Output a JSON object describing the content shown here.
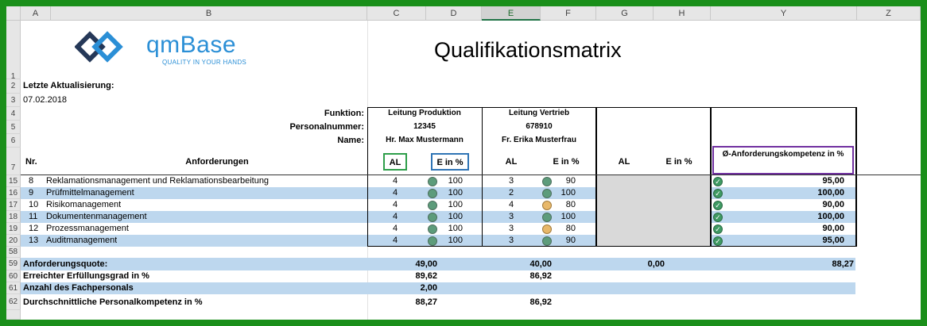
{
  "columns": [
    "A",
    "B",
    "C",
    "D",
    "E",
    "F",
    "G",
    "H",
    "Y",
    "Z"
  ],
  "selected_column": "E",
  "rows": [
    "1",
    "2",
    "3",
    "4",
    "5",
    "6",
    "7",
    "15",
    "16",
    "17",
    "18",
    "19",
    "20",
    "58",
    "59",
    "60",
    "61",
    "62"
  ],
  "logo": {
    "name": "qmBase",
    "tagline": "QUALITY IN YOUR HANDS"
  },
  "title": "Qualifikationsmatrix",
  "last_update_label": "Letzte Aktualisierung:",
  "last_update_date": "07.02.2018",
  "labels": {
    "funktion": "Funktion:",
    "personalnummer": "Personalnummer:",
    "name": "Name:",
    "nr": "Nr.",
    "anforderungen": "Anforderungen",
    "al": "AL",
    "e_in_pct": "E in %",
    "avg_competence": "Ø-Anforderungskompetenz in %"
  },
  "persons": [
    {
      "funktion": "Leitung Produktion",
      "personalnummer": "12345",
      "name": "Hr. Max Mustermann"
    },
    {
      "funktion": "Leitung Vertrieb",
      "personalnummer": "678910",
      "name": "Fr. Erika Musterfrau"
    }
  ],
  "requirements": [
    {
      "nr": "8",
      "name": "Reklamationsmanagement und Reklamationsbearbeitung",
      "p1_al": "4",
      "p1_e": "100",
      "p1_status": "green",
      "p2_al": "3",
      "p2_e": "90",
      "p2_status": "green",
      "avg": "95,00"
    },
    {
      "nr": "9",
      "name": "Prüfmittelmanagement",
      "p1_al": "4",
      "p1_e": "100",
      "p1_status": "green",
      "p2_al": "2",
      "p2_e": "100",
      "p2_status": "green",
      "avg": "100,00"
    },
    {
      "nr": "10",
      "name": "Risikomanagement",
      "p1_al": "4",
      "p1_e": "100",
      "p1_status": "green",
      "p2_al": "4",
      "p2_e": "80",
      "p2_status": "yellow",
      "avg": "90,00"
    },
    {
      "nr": "11",
      "name": "Dokumentenmanagement",
      "p1_al": "4",
      "p1_e": "100",
      "p1_status": "green",
      "p2_al": "3",
      "p2_e": "100",
      "p2_status": "green",
      "avg": "100,00"
    },
    {
      "nr": "12",
      "name": "Prozessmanagement",
      "p1_al": "4",
      "p1_e": "100",
      "p1_status": "green",
      "p2_al": "3",
      "p2_e": "80",
      "p2_status": "yellow",
      "avg": "90,00"
    },
    {
      "nr": "13",
      "name": "Auditmanagement",
      "p1_al": "4",
      "p1_e": "100",
      "p1_status": "green",
      "p2_al": "3",
      "p2_e": "90",
      "p2_status": "green",
      "avg": "95,00"
    }
  ],
  "summary": {
    "anforderungsquote_label": "Anforderungsquote:",
    "anforderungsquote": {
      "p1": "49,00",
      "p2": "40,00",
      "g": "0,00",
      "y": "88,27"
    },
    "erfuellungsgrad_label": "Erreichter Erfüllungsgrad in %",
    "erfuellungsgrad": {
      "p1": "89,62",
      "p2": "86,92"
    },
    "anzahl_label": "Anzahl des Fachpersonals",
    "anzahl": "2,00",
    "personalkompetenz_label": "Durchschnittliche Personalkompetenz in %",
    "personalkompetenz": {
      "p1": "88,27",
      "p2": "86,92"
    }
  },
  "colors": {
    "band": "#bdd7ee",
    "status_green": "#5d9c7b",
    "status_yellow": "#e8b86a",
    "al_box": "#2e9e4a",
    "e_box": "#2f74b5",
    "avg_box": "#7030a0"
  }
}
